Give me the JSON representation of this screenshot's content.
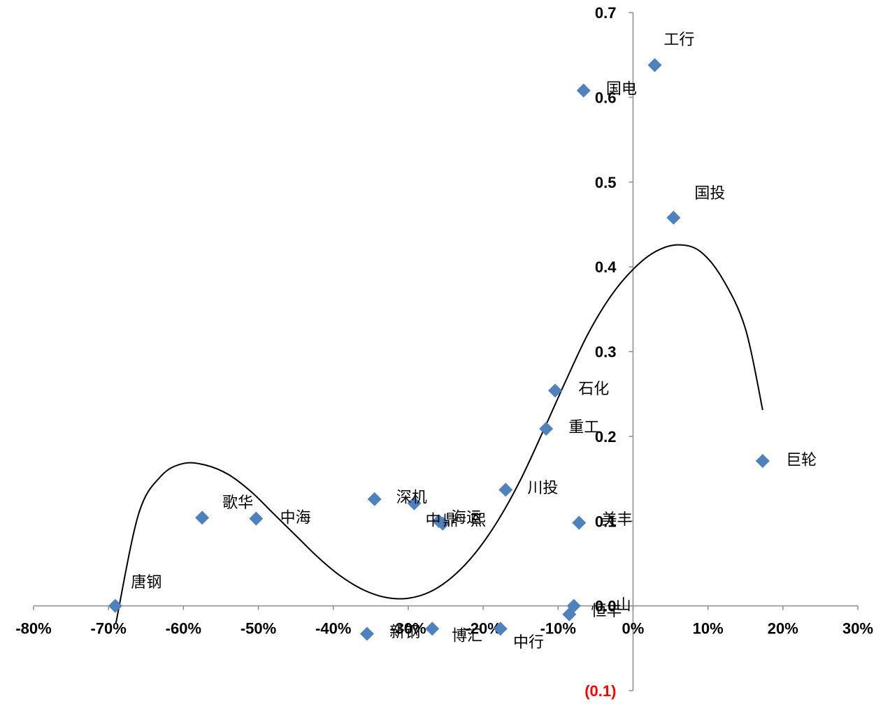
{
  "chart_data": {
    "type": "scatter",
    "xlim": [
      -0.8,
      0.3
    ],
    "ylim": [
      -0.1,
      0.7
    ],
    "x_ticks": [
      {
        "value": -0.8,
        "label": "-80%"
      },
      {
        "value": -0.7,
        "label": "-70%"
      },
      {
        "value": -0.6,
        "label": "-60%"
      },
      {
        "value": -0.5,
        "label": "-50%"
      },
      {
        "value": -0.4,
        "label": "-40%"
      },
      {
        "value": -0.3,
        "label": "-30%"
      },
      {
        "value": -0.2,
        "label": "-20%"
      },
      {
        "value": -0.1,
        "label": "-10%"
      },
      {
        "value": 0.0,
        "label": "0%"
      },
      {
        "value": 0.1,
        "label": "10%"
      },
      {
        "value": 0.2,
        "label": "20%"
      },
      {
        "value": 0.3,
        "label": "30%"
      }
    ],
    "y_ticks": [
      {
        "value": -0.1,
        "label": "(0.1)",
        "color": "#ff0000"
      },
      {
        "value": 0.0,
        "label": "0.0"
      },
      {
        "value": 0.1,
        "label": "0.1"
      },
      {
        "value": 0.2,
        "label": "0.2"
      },
      {
        "value": 0.3,
        "label": "0.3"
      },
      {
        "value": 0.4,
        "label": "0.4"
      },
      {
        "value": 0.5,
        "label": "0.5"
      },
      {
        "value": 0.6,
        "label": "0.6"
      },
      {
        "value": 0.7,
        "label": "0.7"
      }
    ],
    "marker_color": "#4f81bd",
    "trendline_color": "#000000",
    "trendline": [
      [
        -0.69,
        -0.02
      ],
      [
        -0.66,
        0.108
      ],
      [
        -0.63,
        0.153
      ],
      [
        -0.6,
        0.168
      ],
      [
        -0.57,
        0.166
      ],
      [
        -0.54,
        0.155
      ],
      [
        -0.51,
        0.135
      ],
      [
        -0.48,
        0.109
      ],
      [
        -0.45,
        0.083
      ],
      [
        -0.42,
        0.057
      ],
      [
        -0.39,
        0.035
      ],
      [
        -0.36,
        0.019
      ],
      [
        -0.33,
        0.01
      ],
      [
        -0.3,
        0.009
      ],
      [
        -0.27,
        0.017
      ],
      [
        -0.24,
        0.035
      ],
      [
        -0.21,
        0.063
      ],
      [
        -0.18,
        0.101
      ],
      [
        -0.15,
        0.149
      ],
      [
        -0.12,
        0.206
      ],
      [
        -0.09,
        0.265
      ],
      [
        -0.06,
        0.321
      ],
      [
        -0.03,
        0.365
      ],
      [
        0.0,
        0.397
      ],
      [
        0.03,
        0.418
      ],
      [
        0.06,
        0.426
      ],
      [
        0.09,
        0.418
      ],
      [
        0.12,
        0.385
      ],
      [
        0.15,
        0.327
      ],
      [
        0.173,
        0.231
      ]
    ],
    "points": [
      {
        "name": "工行",
        "x": 0.029,
        "y": 0.638
      },
      {
        "name": "国电",
        "x": -0.066,
        "y": 0.608
      },
      {
        "name": "国投",
        "x": 0.054,
        "y": 0.458
      },
      {
        "name": "石化",
        "x": -0.104,
        "y": 0.254
      },
      {
        "name": "重工",
        "x": -0.116,
        "y": 0.209
      },
      {
        "name": "巨轮",
        "x": 0.173,
        "y": 0.171
      },
      {
        "name": "川投",
        "x": -0.17,
        "y": 0.137
      },
      {
        "name": "深机",
        "x": -0.345,
        "y": 0.126
      },
      {
        "name": "",
        "x": -0.292,
        "y": 0.121
      },
      {
        "name": "歌华",
        "x": -0.575,
        "y": 0.104
      },
      {
        "name": "中海",
        "x": -0.503,
        "y": 0.103
      },
      {
        "name": "中鼎",
        "x": -0.259,
        "y": 0.1
      },
      {
        "name": "海运",
        "x": -0.254,
        "y": 0.097
      },
      {
        "name": "美丰",
        "x": -0.072,
        "y": 0.098
      },
      {
        "name": "唐钢",
        "x": -0.691,
        "y": 0.0
      },
      {
        "name": "山",
        "x": -0.079,
        "y": 0.0
      },
      {
        "name": "恒丰",
        "x": -0.085,
        "y": -0.01
      },
      {
        "name": "新钢",
        "x": -0.355,
        "y": -0.033
      },
      {
        "name": "博汇",
        "x": -0.268,
        "y": -0.027
      },
      {
        "name": "中行",
        "x": -0.177,
        "y": -0.027
      }
    ],
    "annotations": [
      {
        "text": "工行",
        "x": 0.041,
        "y": 0.662
      },
      {
        "text": "国电",
        "x": -0.036,
        "y": 0.604
      },
      {
        "text": "国投",
        "x": 0.082,
        "y": 0.481
      },
      {
        "text": "石化",
        "x": -0.073,
        "y": 0.25
      },
      {
        "text": "重工",
        "x": -0.086,
        "y": 0.205
      },
      {
        "text": "巨轮",
        "x": 0.204,
        "y": 0.166
      },
      {
        "text": "川投",
        "x": -0.141,
        "y": 0.133
      },
      {
        "text": "深机",
        "x": -0.316,
        "y": 0.122
      },
      {
        "text": "歌华",
        "x": -0.548,
        "y": 0.116
      },
      {
        "text": "中海",
        "x": -0.471,
        "y": 0.098
      },
      {
        "text": "中",
        "x": -0.277,
        "y": 0.095
      },
      {
        "text": "鼎",
        "x": -0.254,
        "y": 0.095
      },
      {
        "text": "海运",
        "x": -0.243,
        "y": 0.098
      },
      {
        "text": "熙",
        "x": -0.217,
        "y": 0.095
      },
      {
        "text": "美丰",
        "x": -0.042,
        "y": 0.096
      },
      {
        "text": "唐钢",
        "x": -0.67,
        "y": 0.022
      },
      {
        "text": "山",
        "x": -0.023,
        "y": -0.005
      },
      {
        "text": "恒丰",
        "x": -0.056,
        "y": -0.012
      },
      {
        "text": "新钢",
        "x": -0.325,
        "y": -0.037
      },
      {
        "text": "博汇",
        "x": -0.242,
        "y": -0.041
      },
      {
        "text": "中行",
        "x": -0.16,
        "y": -0.049
      }
    ]
  }
}
